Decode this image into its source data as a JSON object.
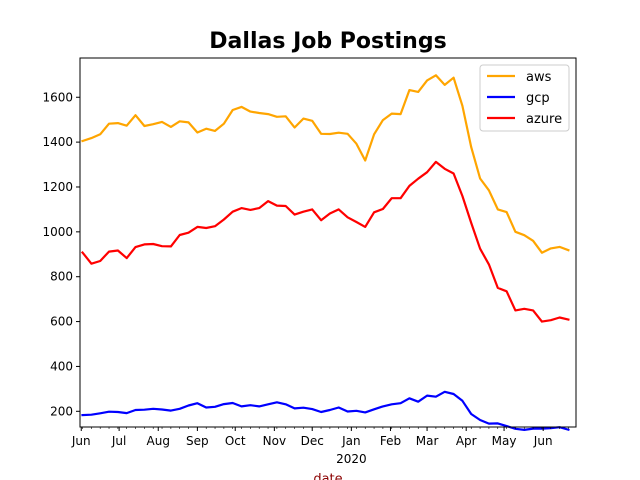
{
  "chart_data": {
    "type": "line",
    "title": "Dallas Job Postings",
    "xlabel": "date",
    "ylabel": "",
    "x_start": "2019-06-02",
    "x_step_days": 7,
    "x_tick_labels": [
      {
        "date": "2019-06-01",
        "label": "Jun"
      },
      {
        "date": "2019-07-01",
        "label": "Jul"
      },
      {
        "date": "2019-08-01",
        "label": "Aug"
      },
      {
        "date": "2019-09-01",
        "label": "Sep"
      },
      {
        "date": "2019-10-01",
        "label": "Oct"
      },
      {
        "date": "2019-11-01",
        "label": "Nov"
      },
      {
        "date": "2019-12-01",
        "label": "Dec"
      },
      {
        "date": "2020-01-01",
        "label": "Jan",
        "sublabel": "2020"
      },
      {
        "date": "2020-02-01",
        "label": "Feb"
      },
      {
        "date": "2020-03-01",
        "label": "Mar"
      },
      {
        "date": "2020-04-01",
        "label": "Apr"
      },
      {
        "date": "2020-05-01",
        "label": "May"
      },
      {
        "date": "2020-06-01",
        "label": "Jun"
      }
    ],
    "xlim": [
      "2019-05-31",
      "2020-06-27"
    ],
    "yticks": [
      200,
      400,
      600,
      800,
      1000,
      1200,
      1400,
      1600
    ],
    "ylim": [
      130,
      1775
    ],
    "grid": false,
    "legend_position": "upper right",
    "series": [
      {
        "name": "aws",
        "color": "#ffa500",
        "values": [
          1405,
          1418,
          1435,
          1482,
          1485,
          1473,
          1520,
          1472,
          1480,
          1490,
          1468,
          1493,
          1488,
          1443,
          1460,
          1450,
          1482,
          1543,
          1557,
          1536,
          1530,
          1525,
          1513,
          1515,
          1465,
          1505,
          1495,
          1437,
          1436,
          1442,
          1437,
          1393,
          1318,
          1435,
          1498,
          1527,
          1525,
          1632,
          1624,
          1675,
          1698,
          1655,
          1687,
          1562,
          1378,
          1238,
          1185,
          1100,
          1088,
          1000,
          985,
          960,
          907,
          926,
          933,
          918
        ]
      },
      {
        "name": "gcp",
        "color": "#0000ff",
        "values": [
          183,
          185,
          191,
          198,
          197,
          192,
          206,
          207,
          211,
          208,
          203,
          211,
          226,
          236,
          217,
          220,
          232,
          237,
          222,
          227,
          222,
          231,
          240,
          231,
          213,
          216,
          210,
          197,
          206,
          217,
          199,
          202,
          195,
          209,
          222,
          231,
          236,
          258,
          243,
          270,
          265,
          287,
          277,
          247,
          188,
          161,
          145,
          146,
          134,
          122,
          117,
          123,
          123,
          125,
          129,
          118
        ]
      },
      {
        "name": "azure",
        "color": "#ff0000",
        "values": [
          908,
          858,
          870,
          912,
          917,
          883,
          932,
          944,
          946,
          936,
          935,
          986,
          996,
          1022,
          1017,
          1025,
          1055,
          1090,
          1106,
          1098,
          1106,
          1137,
          1117,
          1115,
          1077,
          1090,
          1100,
          1052,
          1082,
          1100,
          1065,
          1044,
          1022,
          1087,
          1102,
          1150,
          1150,
          1205,
          1237,
          1266,
          1312,
          1281,
          1260,
          1160,
          1040,
          925,
          855,
          750,
          735,
          650,
          657,
          650,
          600,
          606,
          618,
          609
        ]
      }
    ]
  }
}
